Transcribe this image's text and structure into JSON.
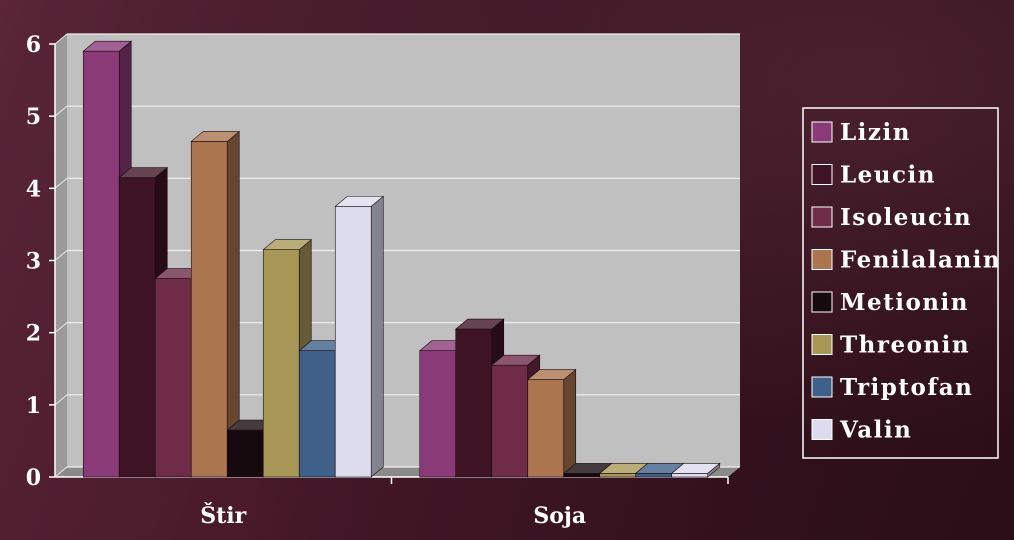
{
  "chart_data": {
    "type": "bar",
    "categories": [
      "Štir",
      "Soja"
    ],
    "series": [
      {
        "name": "Lizin",
        "color": "#8b3a78",
        "values": [
          5.9,
          1.75
        ]
      },
      {
        "name": "Leucin",
        "color": "#3e1424",
        "values": [
          4.15,
          2.05
        ]
      },
      {
        "name": "Isoleucin",
        "color": "#6e2c48",
        "values": [
          2.75,
          1.55
        ]
      },
      {
        "name": "Fenilalanin",
        "color": "#ab7550",
        "values": [
          4.65,
          1.35
        ]
      },
      {
        "name": "Metionin",
        "color": "#160a0e",
        "values": [
          0.65,
          0.05
        ]
      },
      {
        "name": "Threonin",
        "color": "#a89858",
        "values": [
          3.15,
          0.05
        ]
      },
      {
        "name": "Triptofan",
        "color": "#3f6088",
        "values": [
          1.75,
          0.05
        ]
      },
      {
        "name": "Valin",
        "color": "#dcdcee",
        "values": [
          3.75,
          0.05
        ]
      }
    ],
    "yticks": [
      "0",
      "1",
      "2",
      "3",
      "4",
      "5",
      "6"
    ],
    "ylim": [
      0,
      6
    ],
    "grid": true,
    "legend_position": "right",
    "title": "",
    "xlabel": "",
    "ylabel": ""
  }
}
